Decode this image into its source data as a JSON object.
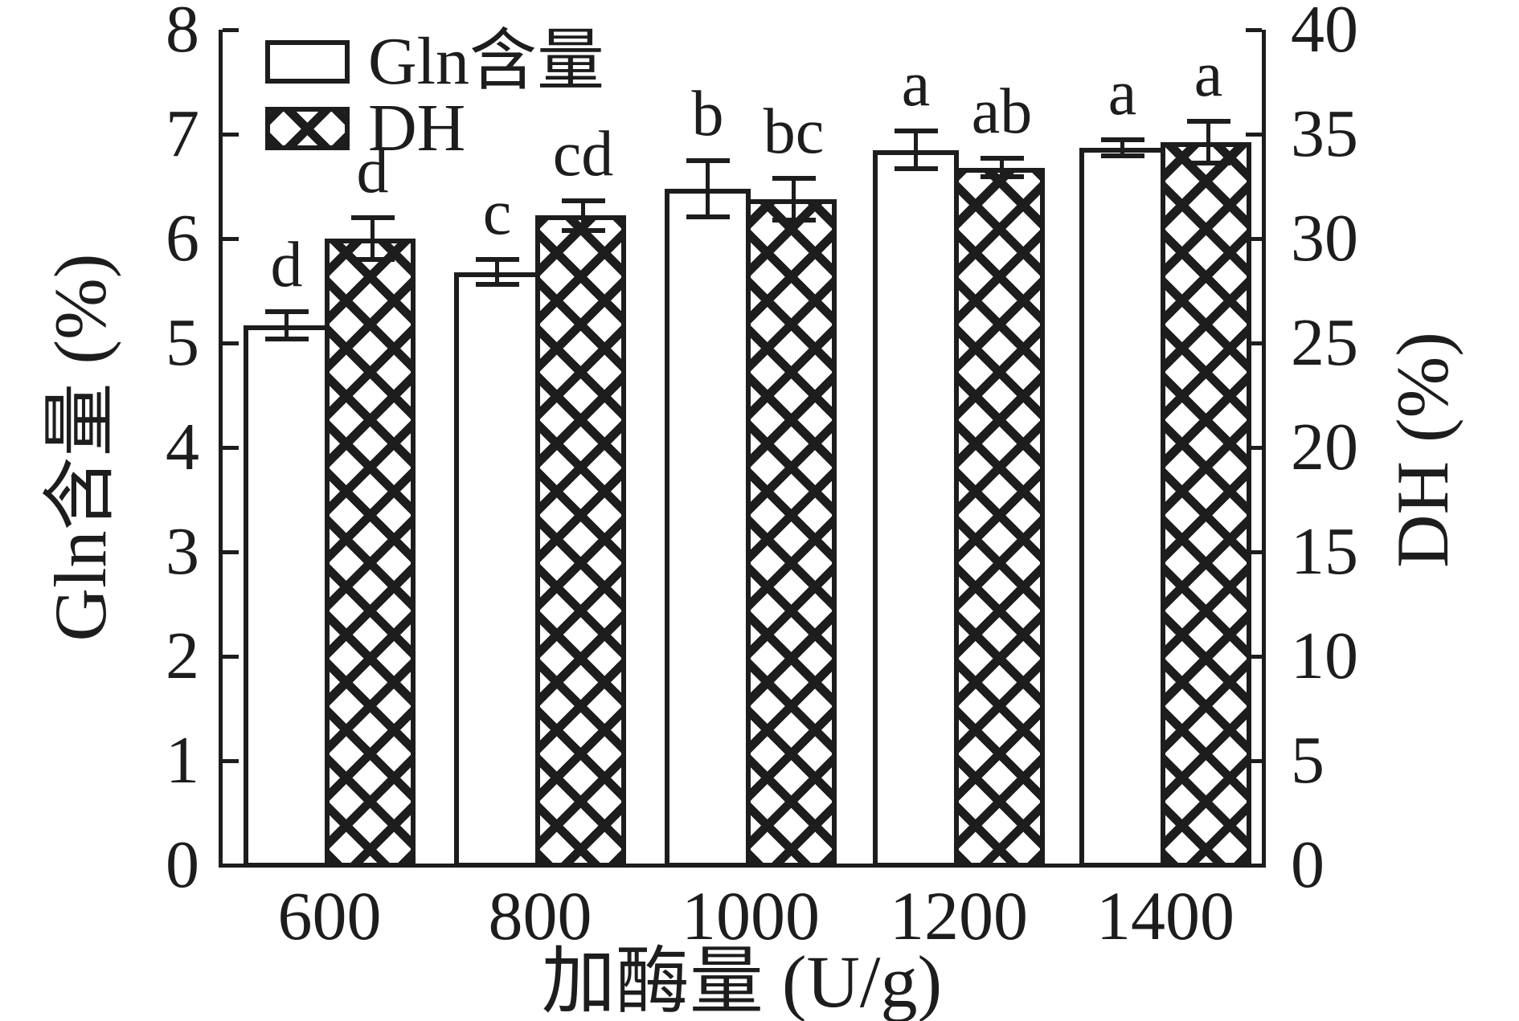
{
  "figure": {
    "background": "#ffffff",
    "ink_color": "#1d1d1d"
  },
  "chart_data": {
    "type": "bar",
    "title": "",
    "xlabel": "加酶量 (U/g)",
    "categories": [
      "600",
      "800",
      "1000",
      "1200",
      "1400"
    ],
    "grid": false,
    "legend_position": "top-left",
    "axes": {
      "left": {
        "label": "Gln含量 (%)",
        "min": 0,
        "max": 8,
        "ticks": [
          0,
          1,
          2,
          3,
          4,
          5,
          6,
          7,
          8
        ]
      },
      "right": {
        "label": "DH (%)",
        "min": 0,
        "max": 40,
        "ticks": [
          0,
          5,
          10,
          15,
          20,
          25,
          30,
          35,
          40
        ]
      }
    },
    "series": [
      {
        "name": "Gln含量",
        "axis": "left",
        "style": "plain",
        "values": [
          5.17,
          5.68,
          6.48,
          6.85,
          6.87
        ],
        "errors": [
          0.13,
          0.12,
          0.27,
          0.18,
          0.08
        ],
        "sig_letters": [
          "d",
          "c",
          "b",
          "a",
          "a"
        ]
      },
      {
        "name": "DH",
        "axis": "right",
        "style": "crosshatch",
        "values": [
          30.0,
          31.1,
          31.9,
          33.4,
          34.6
        ],
        "errors": [
          1.0,
          0.7,
          1.0,
          0.45,
          1.0
        ],
        "sig_letters": [
          "d",
          "cd",
          "bc",
          "ab",
          "a"
        ]
      }
    ]
  }
}
